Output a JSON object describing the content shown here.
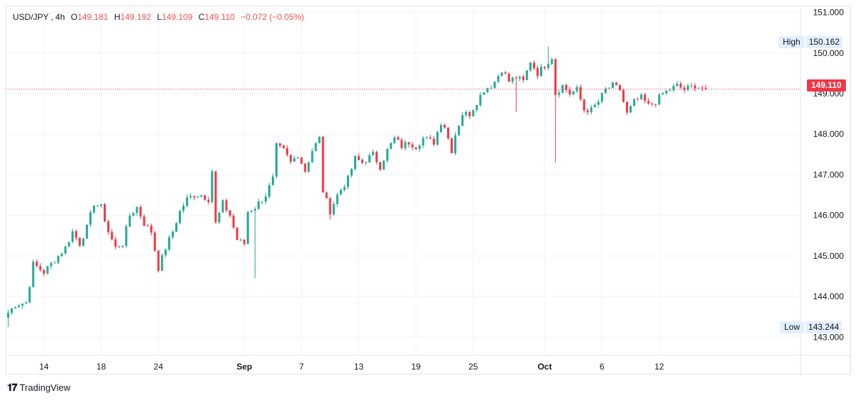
{
  "legend": {
    "symbol": "USD/JPY",
    "interval": "4h",
    "open_label": "O",
    "open": "149.181",
    "high_label": "H",
    "high": "149.192",
    "low_label": "L",
    "low": "149.109",
    "close_label": "C",
    "close": "149.110",
    "change": "−0.072 (−0.05%)"
  },
  "high_marker": {
    "label": "High",
    "value": "150.162"
  },
  "low_marker": {
    "label": "Low",
    "value": "143.244"
  },
  "last_price": "149.110",
  "brand": {
    "name": "TradingView"
  },
  "colors": {
    "up": "#22ab94",
    "down": "#f23645",
    "grid": "#f0f3fa",
    "text": "#131722"
  },
  "chart_data": {
    "type": "candlestick",
    "title": "USD/JPY, 4h",
    "y_ticks": [
      143,
      144,
      145,
      146,
      147,
      148,
      149,
      150,
      151
    ],
    "y_tick_labels": [
      "143.000",
      "144.000",
      "145.000",
      "146.000",
      "147.000",
      "148.000",
      "149.000",
      "150.000",
      "151.000"
    ],
    "ylim": [
      142.55,
      151.15
    ],
    "x_tick_labels": [
      "14",
      "18",
      "24",
      "Sep",
      "7",
      "13",
      "19",
      "25",
      "Oct",
      "6",
      "12"
    ],
    "x_tick_bar_index": [
      10,
      26,
      42,
      66,
      82,
      98,
      114,
      130,
      150,
      166,
      182
    ],
    "bar_count": 196,
    "total_slots": 222,
    "close_path": [
      [
        0,
        143.6
      ],
      [
        2,
        143.8
      ],
      [
        5,
        143.85
      ],
      [
        6,
        144.3
      ],
      [
        7,
        144.8
      ],
      [
        10,
        144.6
      ],
      [
        13,
        144.9
      ],
      [
        16,
        145.2
      ],
      [
        18,
        145.6
      ],
      [
        20,
        145.3
      ],
      [
        22,
        145.7
      ],
      [
        24,
        146.3
      ],
      [
        26,
        146.2
      ],
      [
        28,
        145.6
      ],
      [
        30,
        145.2
      ],
      [
        32,
        145.3
      ],
      [
        34,
        146.0
      ],
      [
        36,
        146.2
      ],
      [
        38,
        145.8
      ],
      [
        40,
        145.6
      ],
      [
        42,
        144.7
      ],
      [
        44,
        145.2
      ],
      [
        46,
        145.6
      ],
      [
        48,
        146.1
      ],
      [
        50,
        146.4
      ],
      [
        52,
        146.5
      ],
      [
        54,
        146.5
      ],
      [
        56,
        146.4
      ],
      [
        57,
        147.1
      ],
      [
        58,
        145.8
      ],
      [
        60,
        146.3
      ],
      [
        62,
        146.0
      ],
      [
        64,
        145.4
      ],
      [
        66,
        145.3
      ],
      [
        67,
        146.1
      ],
      [
        69,
        146.2
      ],
      [
        72,
        146.5
      ],
      [
        74,
        146.9
      ],
      [
        75,
        147.7
      ],
      [
        77,
        147.6
      ],
      [
        79,
        147.3
      ],
      [
        81,
        147.5
      ],
      [
        83,
        147.1
      ],
      [
        85,
        147.6
      ],
      [
        87,
        147.9
      ],
      [
        88,
        146.6
      ],
      [
        90,
        146.1
      ],
      [
        92,
        146.5
      ],
      [
        95,
        146.9
      ],
      [
        97,
        147.4
      ],
      [
        99,
        147.3
      ],
      [
        102,
        147.5
      ],
      [
        104,
        147.2
      ],
      [
        106,
        147.6
      ],
      [
        108,
        147.9
      ],
      [
        110,
        147.7
      ],
      [
        112,
        147.8
      ],
      [
        114,
        147.7
      ],
      [
        116,
        147.9
      ],
      [
        119,
        147.8
      ],
      [
        121,
        148.3
      ],
      [
        122,
        148.2
      ],
      [
        124,
        147.6
      ],
      [
        125,
        148.0
      ],
      [
        127,
        148.5
      ],
      [
        129,
        148.5
      ],
      [
        131,
        148.8
      ],
      [
        133,
        149.1
      ],
      [
        135,
        149.2
      ],
      [
        136,
        149.3
      ],
      [
        138,
        149.6
      ],
      [
        140,
        149.3
      ],
      [
        142,
        149.4
      ],
      [
        144,
        149.3
      ],
      [
        146,
        149.8
      ],
      [
        148,
        149.5
      ],
      [
        150,
        149.7
      ],
      [
        152,
        149.9
      ],
      [
        153,
        149.0
      ],
      [
        155,
        149.2
      ],
      [
        157,
        149.0
      ],
      [
        159,
        149.1
      ],
      [
        161,
        148.6
      ],
      [
        163,
        148.6
      ],
      [
        165,
        148.8
      ],
      [
        167,
        149.1
      ],
      [
        169,
        149.2
      ],
      [
        171,
        149.1
      ],
      [
        173,
        148.5
      ],
      [
        175,
        148.8
      ],
      [
        177,
        148.9
      ],
      [
        179,
        148.7
      ],
      [
        181,
        148.8
      ],
      [
        183,
        149.0
      ],
      [
        185,
        149.1
      ],
      [
        187,
        149.2
      ],
      [
        189,
        149.1
      ],
      [
        192,
        149.2
      ],
      [
        195,
        149.11
      ]
    ],
    "high_point": {
      "bar": 151,
      "value": 150.162
    },
    "low_point": {
      "bar": 0,
      "value": 143.244
    }
  }
}
